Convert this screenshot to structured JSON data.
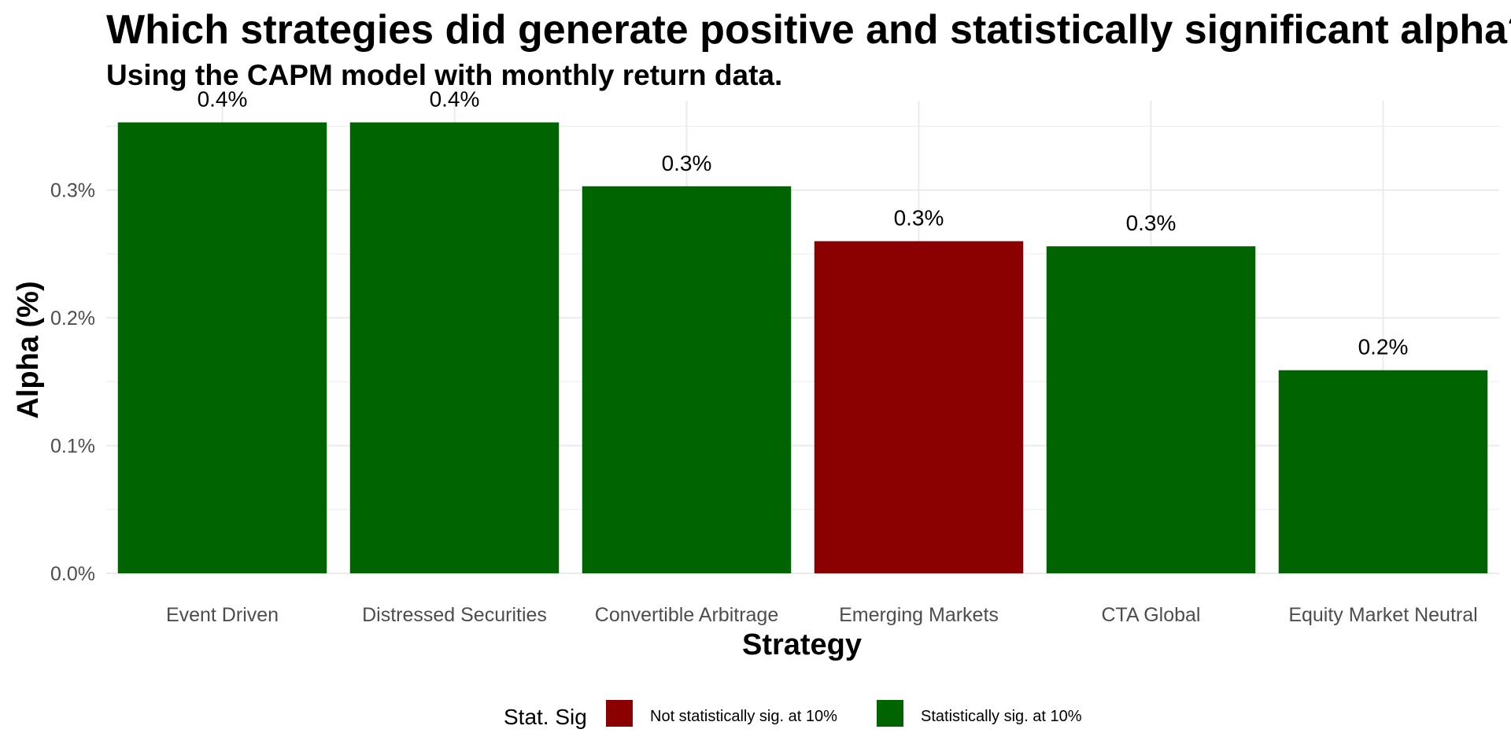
{
  "title": "Which strategies did generate positive and statistically significant alpha?",
  "subtitle": "Using the CAPM model with monthly return data.",
  "colors": {
    "significant": "#006400",
    "not_significant": "#8b0000",
    "grid": "#ebebeb"
  },
  "chart_data": {
    "type": "bar",
    "xlabel": "Strategy",
    "ylabel": "Alpha (%)",
    "ylim": [
      0,
      0.37
    ],
    "yticks": [
      0.0,
      0.1,
      0.2,
      0.3
    ],
    "ytick_labels": [
      "0.0%",
      "0.1%",
      "0.2%",
      "0.3%"
    ],
    "grid": true,
    "legend_position": "bottom",
    "categories": [
      "Event Driven",
      "Distressed Securities",
      "Convertible Arbitrage",
      "Emerging Markets",
      "CTA Global",
      "Equity Market Neutral"
    ],
    "values": [
      0.353,
      0.353,
      0.303,
      0.26,
      0.256,
      0.159
    ],
    "data_labels": [
      "0.4%",
      "0.4%",
      "0.3%",
      "0.3%",
      "0.3%",
      "0.2%"
    ],
    "significance": [
      "sig",
      "sig",
      "sig",
      "not",
      "sig",
      "sig"
    ],
    "legend": {
      "title": "Stat. Sig",
      "entries": [
        {
          "key": "not",
          "label": "Not statistically sig. at 10%"
        },
        {
          "key": "sig",
          "label": "Statistically sig. at 10%"
        }
      ]
    }
  }
}
